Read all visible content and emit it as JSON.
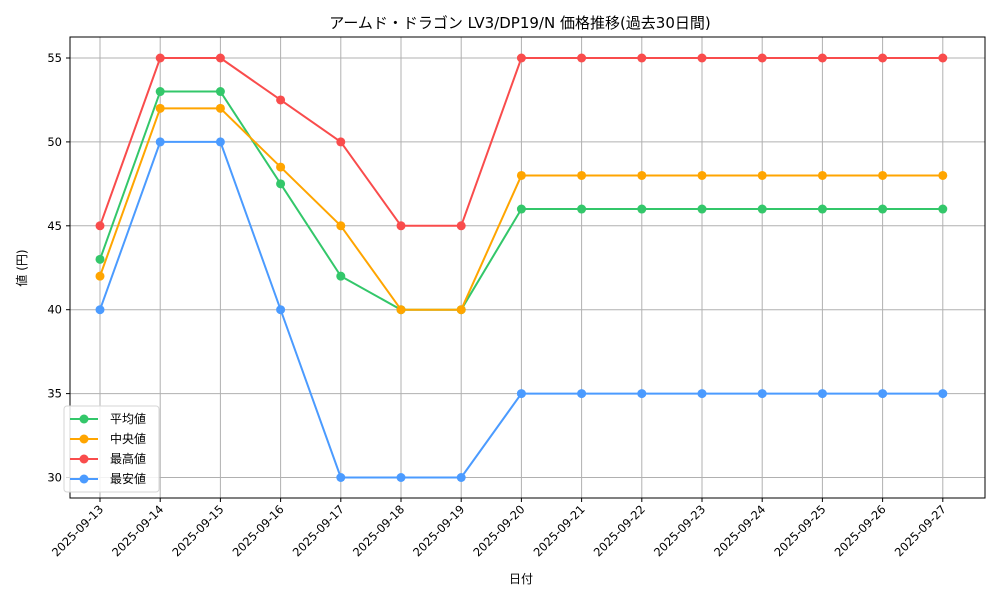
{
  "chart_data": {
    "type": "line",
    "title": "アームド・ドラゴン LV3/DP19/N 価格推移(過去30日間)",
    "xlabel": "日付",
    "ylabel": "値 (円)",
    "categories": [
      "2025-09-13",
      "2025-09-14",
      "2025-09-15",
      "2025-09-16",
      "2025-09-17",
      "2025-09-18",
      "2025-09-19",
      "2025-09-20",
      "2025-09-21",
      "2025-09-22",
      "2025-09-23",
      "2025-09-24",
      "2025-09-25",
      "2025-09-26",
      "2025-09-27"
    ],
    "series": [
      {
        "name": "平均値",
        "color": "#33c76a",
        "values": [
          43,
          53,
          53,
          47.5,
          42,
          40,
          40,
          46,
          46,
          46,
          46,
          46,
          46,
          46,
          46
        ]
      },
      {
        "name": "中央値",
        "color": "#ffa500",
        "values": [
          42,
          52,
          52,
          48.5,
          45,
          40,
          40,
          48,
          48,
          48,
          48,
          48,
          48,
          48,
          48
        ]
      },
      {
        "name": "最高値",
        "color": "#f94c4c",
        "values": [
          45,
          55,
          55,
          52.5,
          50,
          45,
          45,
          55,
          55,
          55,
          55,
          55,
          55,
          55,
          55
        ]
      },
      {
        "name": "最安値",
        "color": "#4b9bff",
        "values": [
          40,
          50,
          50,
          40,
          30,
          30,
          30,
          35,
          35,
          35,
          35,
          35,
          35,
          35,
          35
        ]
      }
    ],
    "yticks": [
      30,
      35,
      40,
      45,
      50,
      55
    ],
    "ylim": [
      28.8,
      56.3
    ],
    "grid": true,
    "legend_position": "lower left",
    "x_tick_rotation": 45
  }
}
